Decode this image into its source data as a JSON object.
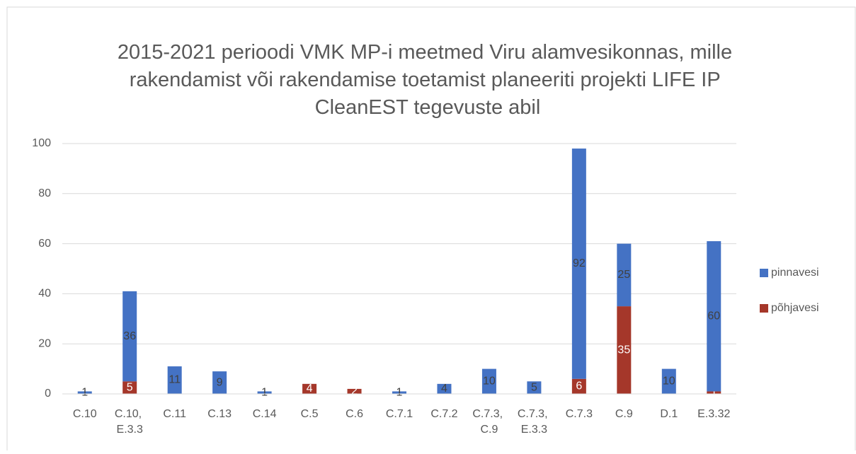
{
  "chart_data": {
    "type": "stacked_bar",
    "title": "2015-2021 perioodi VMK MP-i meetmed Viru alamvesikonnas, mille rakendamist või rakendamise toetamist planeeriti projekti LIFE IP CleanEST tegevuste abil",
    "categories": [
      "C.10",
      "C.10, E.3.3",
      "C.11",
      "C.13",
      "C.14",
      "C.5",
      "C.6",
      "C.7.1",
      "C.7.2",
      "C.7.3, C.9",
      "C.7.3, E.3.3",
      "C.7.3",
      "C.9",
      "D.1",
      "E.3.32"
    ],
    "series": [
      {
        "name": "pinnavesi",
        "color": "#4472c4",
        "values": [
          1,
          36,
          11,
          9,
          1,
          null,
          null,
          1,
          4,
          10,
          5,
          92,
          25,
          10,
          60
        ]
      },
      {
        "name": "põhjavesi",
        "color": "#a5372a",
        "values": [
          null,
          5,
          null,
          null,
          null,
          4,
          2,
          null,
          null,
          null,
          null,
          6,
          35,
          null,
          1
        ]
      }
    ],
    "ylim": [
      0,
      100
    ],
    "yticks": [
      0,
      20,
      40,
      60,
      80,
      100
    ],
    "grid": true,
    "legend": "right"
  }
}
